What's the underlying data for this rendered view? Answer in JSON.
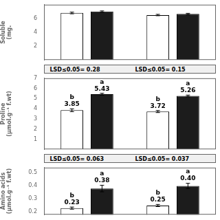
{
  "chart_data": [
    {
      "type": "bar",
      "ylabel": "Soluble\n(mg.",
      "categories": [
        null,
        null
      ],
      "series": [
        {
          "color": "#ffffff",
          "values": [
            6.8,
            6.5
          ],
          "errors": [
            0.12,
            0.1
          ]
        },
        {
          "color": "#1c1c1c",
          "values": [
            7.0,
            6.65
          ],
          "errors": [
            0.1,
            0.1
          ]
        }
      ],
      "ylim": [
        0,
        8
      ],
      "yticks": [
        2,
        4,
        6
      ],
      "grid": false,
      "data_labels": false,
      "annotations": [
        "LSD≤0.05= 0.28",
        "LSD≤0.05= 0.15"
      ]
    },
    {
      "type": "bar",
      "ylabel": "Proline\n(μmol.g⁻¹ f.wt)",
      "categories": [
        null,
        null
      ],
      "series": [
        {
          "color": "#ffffff",
          "values": [
            3.85,
            3.72
          ],
          "errors": [
            0.14,
            0.1
          ],
          "value_labels": [
            "3.85",
            "3.72"
          ],
          "letters": [
            "b",
            "b"
          ]
        },
        {
          "color": "#1c1c1c",
          "values": [
            5.43,
            5.26
          ],
          "errors": [
            0.09,
            0.08
          ],
          "value_labels": [
            "5.43",
            "5.26"
          ],
          "letters": [
            "a",
            "a"
          ]
        }
      ],
      "ylim": [
        0,
        7
      ],
      "yticks": [
        1,
        2,
        3,
        4,
        5,
        6,
        7
      ],
      "grid": false,
      "data_labels": true,
      "annotations": [
        "LSD≤0.05= 0.063",
        "LSD≤0.05= 0.037"
      ]
    },
    {
      "type": "bar",
      "ylabel": "Amino acids\n(μmol.g⁻¹ f.wt)",
      "categories": [
        null,
        null
      ],
      "series": [
        {
          "color": "#ffffff",
          "values": [
            0.23,
            0.25
          ],
          "errors": [
            0.008,
            0.008
          ],
          "value_labels": [
            "0.23",
            "0.25"
          ],
          "letters": [
            "b",
            "b"
          ]
        },
        {
          "color": "#1c1c1c",
          "values": [
            0.38,
            0.4
          ],
          "errors": [
            0.025,
            0.02
          ],
          "value_labels": [
            "0.38",
            "0.40"
          ],
          "letters": [
            "a",
            "a"
          ]
        }
      ],
      "ylim": [
        0.18,
        0.54
      ],
      "yticks": [
        0.2,
        0.3,
        0.4,
        0.5
      ],
      "grid": false,
      "data_labels": true
    }
  ]
}
